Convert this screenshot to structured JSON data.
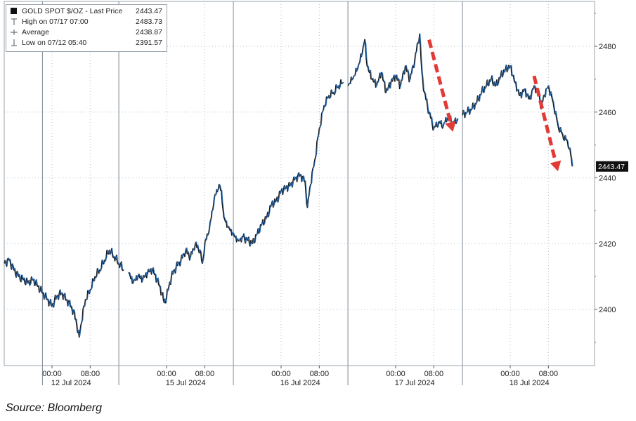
{
  "chart_data": {
    "type": "line",
    "y_axis": {
      "min": 2386,
      "max": 2492,
      "ticks": [
        2400,
        2420,
        2440,
        2460,
        2480
      ],
      "side": "right"
    },
    "x_time_labels": [
      {
        "label": "00:00",
        "hour": 0
      },
      {
        "label": "08:00",
        "hour": 8
      },
      {
        "label": "00:00",
        "hour": 24
      },
      {
        "label": "08:00",
        "hour": 32
      },
      {
        "label": "00:00",
        "hour": 48
      },
      {
        "label": "08:00",
        "hour": 56
      },
      {
        "label": "00:00",
        "hour": 72
      },
      {
        "label": "08:00",
        "hour": 80
      },
      {
        "label": "00:00",
        "hour": 96
      },
      {
        "label": "08:00",
        "hour": 104
      }
    ],
    "x_date_labels": [
      {
        "label": "12 Jul 2024",
        "hour": 4
      },
      {
        "label": "15 Jul 2024",
        "hour": 28
      },
      {
        "label": "16 Jul 2024",
        "hour": 52
      },
      {
        "label": "17 Jul 2024",
        "hour": 76
      },
      {
        "label": "18 Jul 2024",
        "hour": 100
      }
    ],
    "day_separators_hour": [
      -2,
      14,
      38,
      62,
      86
    ],
    "grid": true,
    "legend": {
      "placement": "top-left",
      "rows": [
        {
          "icon": "square-icon",
          "label": "GOLD SPOT $/OZ - Last Price",
          "value": "2443.47"
        },
        {
          "icon": "high-marker-icon",
          "label": "High on 07/17 07:00",
          "value": "2483.73"
        },
        {
          "icon": "average-marker-icon",
          "label": "Average",
          "value": "2438.87"
        },
        {
          "icon": "low-marker-icon",
          "label": "Low on 07/12 05:40",
          "value": "2391.57"
        }
      ]
    },
    "last_price_label": "2443.47",
    "series": [
      {
        "segments": [
          {
            "points": [
              [
                -10,
                2414
              ],
              [
                -9,
                2415
              ],
              [
                -8,
                2412
              ],
              [
                -7,
                2410
              ],
              [
                -6,
                2409
              ],
              [
                -5,
                2408
              ],
              [
                -4,
                2409
              ],
              [
                -3,
                2407
              ],
              [
                -2,
                2405
              ],
              [
                -1,
                2403
              ],
              [
                0,
                2401
              ],
              [
                1,
                2404
              ],
              [
                2,
                2405
              ],
              [
                3,
                2403
              ],
              [
                4,
                2401
              ],
              [
                5,
                2397
              ],
              [
                5.7,
                2391.57
              ],
              [
                6,
                2395
              ],
              [
                7,
                2403
              ],
              [
                8,
                2406
              ],
              [
                9,
                2410
              ],
              [
                10,
                2412
              ],
              [
                11,
                2415
              ],
              [
                12,
                2418
              ],
              [
                13,
                2416
              ],
              [
                14,
                2414
              ],
              [
                15,
                2412
              ]
            ]
          },
          {
            "points": [
              [
                16,
                2411
              ],
              [
                17,
                2408
              ],
              [
                18,
                2410
              ],
              [
                19,
                2409
              ],
              [
                20,
                2411
              ],
              [
                21,
                2412
              ],
              [
                22,
                2409
              ],
              [
                23,
                2405
              ],
              [
                23.5,
                2402
              ],
              [
                24,
                2404
              ],
              [
                25,
                2410
              ],
              [
                26,
                2413
              ],
              [
                27,
                2415
              ],
              [
                28,
                2418
              ],
              [
                29,
                2416
              ],
              [
                30,
                2420
              ],
              [
                31,
                2418
              ],
              [
                31.5,
                2414
              ],
              [
                32,
                2420
              ],
              [
                33,
                2425
              ],
              [
                34,
                2434
              ],
              [
                35,
                2438
              ],
              [
                35.5,
                2436
              ],
              [
                36,
                2428
              ],
              [
                37,
                2425
              ],
              [
                38,
                2423
              ],
              [
                39,
                2421
              ],
              [
                40,
                2422
              ]
            ]
          },
          {
            "points": [
              [
                40,
                2422
              ],
              [
                41,
                2421
              ],
              [
                42,
                2420
              ],
              [
                43,
                2423
              ],
              [
                44,
                2426
              ],
              [
                45,
                2428
              ],
              [
                46,
                2432
              ],
              [
                47,
                2433
              ],
              [
                48,
                2436
              ],
              [
                49,
                2437
              ],
              [
                50,
                2438
              ],
              [
                51,
                2440
              ],
              [
                52,
                2441
              ],
              [
                53,
                2439
              ],
              [
                53.5,
                2431
              ],
              [
                54,
                2437
              ],
              [
                55,
                2445
              ],
              [
                56,
                2455
              ],
              [
                57,
                2462
              ],
              [
                58,
                2465
              ],
              [
                59,
                2466
              ],
              [
                60,
                2468
              ],
              [
                61,
                2469
              ]
            ]
          },
          {
            "points": [
              [
                62,
                2468
              ],
              [
                63,
                2470
              ],
              [
                64,
                2473
              ],
              [
                65,
                2478
              ],
              [
                65.5,
                2482
              ],
              [
                66,
                2474
              ],
              [
                67,
                2470
              ],
              [
                68,
                2468
              ],
              [
                69,
                2472
              ],
              [
                70,
                2466
              ],
              [
                71,
                2469
              ],
              [
                72,
                2471
              ],
              [
                73,
                2468
              ],
              [
                74,
                2474
              ],
              [
                75,
                2470
              ],
              [
                76,
                2476
              ],
              [
                77,
                2483.73
              ],
              [
                77.5,
                2472
              ],
              [
                78,
                2466
              ],
              [
                79,
                2460
              ],
              [
                80,
                2455
              ],
              [
                81,
                2457
              ],
              [
                82,
                2456
              ],
              [
                83,
                2459
              ],
              [
                84,
                2457
              ],
              [
                85,
                2458
              ]
            ]
          },
          {
            "points": [
              [
                86,
                2459
              ],
              [
                87,
                2460
              ],
              [
                88,
                2461
              ],
              [
                89,
                2463
              ],
              [
                90,
                2466
              ],
              [
                91,
                2468
              ],
              [
                92,
                2470
              ],
              [
                93,
                2468
              ],
              [
                94,
                2471
              ],
              [
                95,
                2473
              ],
              [
                96,
                2474
              ],
              [
                97,
                2469
              ],
              [
                98,
                2465
              ],
              [
                99,
                2467
              ],
              [
                100,
                2464
              ],
              [
                101,
                2468
              ],
              [
                102,
                2466
              ],
              [
                102.5,
                2461
              ],
              [
                103,
                2465
              ],
              [
                104,
                2468
              ],
              [
                105,
                2463
              ],
              [
                106,
                2456
              ],
              [
                107,
                2453
              ],
              [
                108,
                2451
              ],
              [
                108.5,
                2449
              ],
              [
                109,
                2443.47
              ]
            ]
          }
        ]
      }
    ],
    "annotations": [
      {
        "type": "arrow",
        "from": [
          79,
          2482
        ],
        "to": [
          84,
          2454
        ]
      },
      {
        "type": "arrow",
        "from": [
          101,
          2471
        ],
        "to": [
          106,
          2442
        ]
      }
    ]
  },
  "source_text": "Source: Bloomberg",
  "colors": {
    "line_black": "#111111",
    "line_blue": "#2f6fb5",
    "arrow_red": "#e23a36",
    "grid": "#b9c2cc",
    "separator": "#7f8a95"
  }
}
